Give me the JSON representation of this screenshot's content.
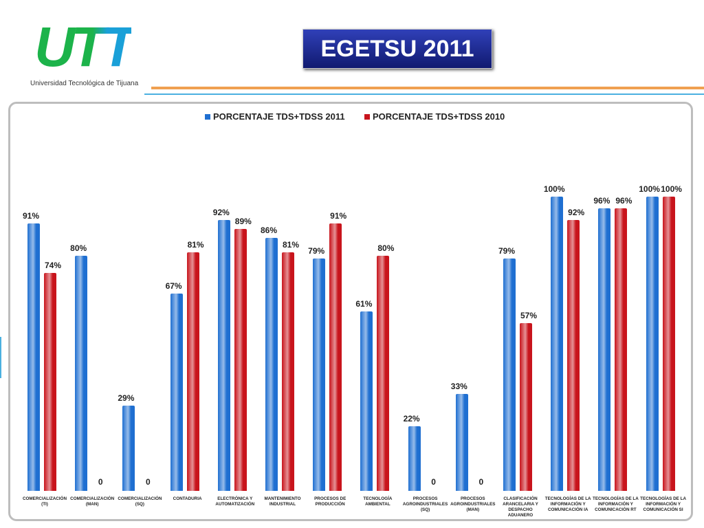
{
  "logo": {
    "mark": "UTT",
    "name": "Universidad Tecnológica de Tijuana"
  },
  "chart_data": {
    "type": "bar",
    "title": "EGETSU 2011",
    "categories": [
      "COMERCIALIZACIÓN (TI)",
      "COMERCIALIZACIÓN (MAN)",
      "COMERCIALIZACIÓN (SQ)",
      "CONTADURIA",
      "ELECTRÓNICA Y AUTOMATIZACIÓN",
      "MANTENIMIENTO INDUSTRIAL",
      "PROCESOS DE PRODUCCIÓN",
      "TECNOLOGÍA AMBIENTAL",
      "PROCESOS AGROINDUSTRIALES (SQ)",
      "PROCESOS AGROINDUSTRIALES (MAN)",
      "CLASIFICACIÓN ARANCELARIA Y DESPACHO ADUANERO",
      "TECNOLOGÍAS DE LA INFORMACIÓN Y COMUNICACIÓN IA",
      "TECNOLOGÍAS DE LA INFORMACIÓN Y COMUNICACIÓN RT",
      "TECNOLOGÍAS DE LA INFORMACIÓN Y COMUNICACIÓN SI"
    ],
    "series": [
      {
        "name": "PORCENTAJE TDS+TDSS 2011",
        "color": "#1f6fd1",
        "values": [
          91,
          80,
          29,
          67,
          92,
          86,
          79,
          61,
          22,
          33,
          79,
          100,
          96,
          100
        ],
        "value_labels": [
          "91%",
          "80%",
          "29%",
          "67%",
          "92%",
          "86%",
          "79%",
          "61%",
          "22%",
          "33%",
          "79%",
          "100%",
          "96%",
          "100%"
        ]
      },
      {
        "name": "PORCENTAJE TDS+TDSS 2010",
        "color": "#c8141c",
        "values": [
          74,
          0,
          0,
          81,
          89,
          81,
          91,
          80,
          0,
          0,
          57,
          92,
          96,
          100
        ],
        "value_labels": [
          "74%",
          "0",
          "0",
          "81%",
          "89%",
          "81%",
          "91%",
          "80%",
          "0",
          "0",
          "57%",
          "92%",
          "96%",
          "100%"
        ]
      }
    ],
    "legend": "top"
  }
}
